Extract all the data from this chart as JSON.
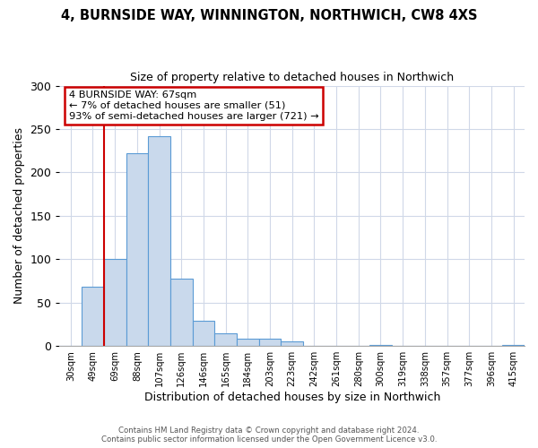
{
  "title_line1": "4, BURNSIDE WAY, WINNINGTON, NORTHWICH, CW8 4XS",
  "title_line2": "Size of property relative to detached houses in Northwich",
  "xlabel": "Distribution of detached houses by size in Northwich",
  "ylabel": "Number of detached properties",
  "bin_labels": [
    "30sqm",
    "49sqm",
    "69sqm",
    "88sqm",
    "107sqm",
    "126sqm",
    "146sqm",
    "165sqm",
    "184sqm",
    "203sqm",
    "223sqm",
    "242sqm",
    "261sqm",
    "280sqm",
    "300sqm",
    "319sqm",
    "338sqm",
    "357sqm",
    "377sqm",
    "396sqm",
    "415sqm"
  ],
  "bar_heights": [
    0,
    68,
    100,
    222,
    242,
    78,
    29,
    15,
    8,
    8,
    5,
    0,
    0,
    0,
    1,
    0,
    0,
    0,
    0,
    0,
    1
  ],
  "bar_color": "#c9d9ec",
  "bar_edge_color": "#5b9bd5",
  "vline_x": 2,
  "vline_color": "#cc0000",
  "annotation_line1": "4 BURNSIDE WAY: 67sqm",
  "annotation_line2": "← 7% of detached houses are smaller (51)",
  "annotation_line3": "93% of semi-detached houses are larger (721) →",
  "annotation_box_color": "#ffffff",
  "annotation_box_edge_color": "#cc0000",
  "ylim": [
    0,
    300
  ],
  "yticks": [
    0,
    50,
    100,
    150,
    200,
    250,
    300
  ],
  "footer_line1": "Contains HM Land Registry data © Crown copyright and database right 2024.",
  "footer_line2": "Contains public sector information licensed under the Open Government Licence v3.0.",
  "background_color": "#ffffff",
  "grid_color": "#d0d8e8"
}
